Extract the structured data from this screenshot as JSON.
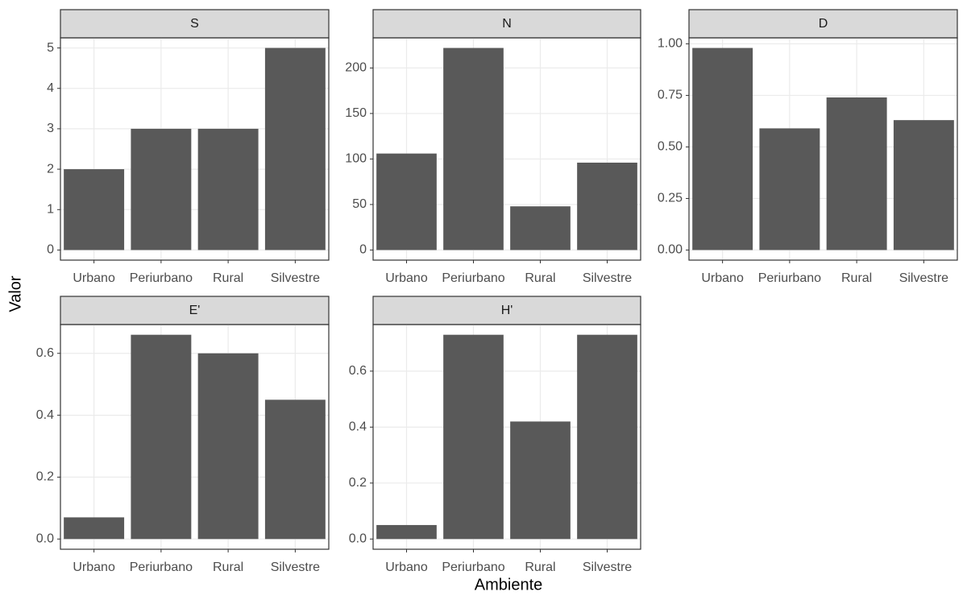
{
  "axis_labels": {
    "x": "Ambiente",
    "y": "Valor"
  },
  "chart_data": [
    {
      "type": "bar",
      "title": "S",
      "categories": [
        "Urbano",
        "Periurbano",
        "Rural",
        "Silvestre"
      ],
      "values": [
        2,
        3,
        3,
        5
      ],
      "color": "#595959",
      "ylim": [
        -0.25,
        5.25
      ],
      "yticks": [
        0,
        1,
        2,
        3,
        4,
        5
      ],
      "grid": true
    },
    {
      "type": "bar",
      "title": "N",
      "categories": [
        "Urbano",
        "Periurbano",
        "Rural",
        "Silvestre"
      ],
      "values": [
        106,
        222,
        48,
        96
      ],
      "color": "#595959",
      "ylim": [
        -11.1,
        233.1
      ],
      "yticks": [
        0,
        50,
        100,
        150,
        200
      ],
      "grid": true
    },
    {
      "type": "bar",
      "title": "D",
      "categories": [
        "Urbano",
        "Periurbano",
        "Rural",
        "Silvestre"
      ],
      "values": [
        0.98,
        0.59,
        0.74,
        0.63
      ],
      "color": "#595959",
      "ylim": [
        -0.049,
        1.029
      ],
      "yticks": [
        {
          "value": 0,
          "label": "0.00"
        },
        {
          "value": 0.25,
          "label": "0.25"
        },
        {
          "value": 0.5,
          "label": "0.50"
        },
        {
          "value": 0.75,
          "label": "0.75"
        },
        {
          "value": 1,
          "label": "1.00"
        }
      ],
      "grid": true
    },
    {
      "type": "bar",
      "title": "E'",
      "categories": [
        "Urbano",
        "Periurbano",
        "Rural",
        "Silvestre"
      ],
      "values": [
        0.07,
        0.66,
        0.6,
        0.45
      ],
      "color": "#595959",
      "ylim": [
        -0.033,
        0.693
      ],
      "yticks": [
        {
          "value": 0,
          "label": "0.0"
        },
        0.2,
        0.4,
        0.6
      ],
      "grid": true
    },
    {
      "type": "bar",
      "title": "H'",
      "categories": [
        "Urbano",
        "Periurbano",
        "Rural",
        "Silvestre"
      ],
      "values": [
        0.05,
        0.73,
        0.42,
        0.73
      ],
      "color": "#595959",
      "ylim": [
        -0.0365,
        0.7665
      ],
      "yticks": [
        {
          "value": 0,
          "label": "0.0"
        },
        0.2,
        0.4,
        0.6
      ],
      "grid": true
    }
  ]
}
